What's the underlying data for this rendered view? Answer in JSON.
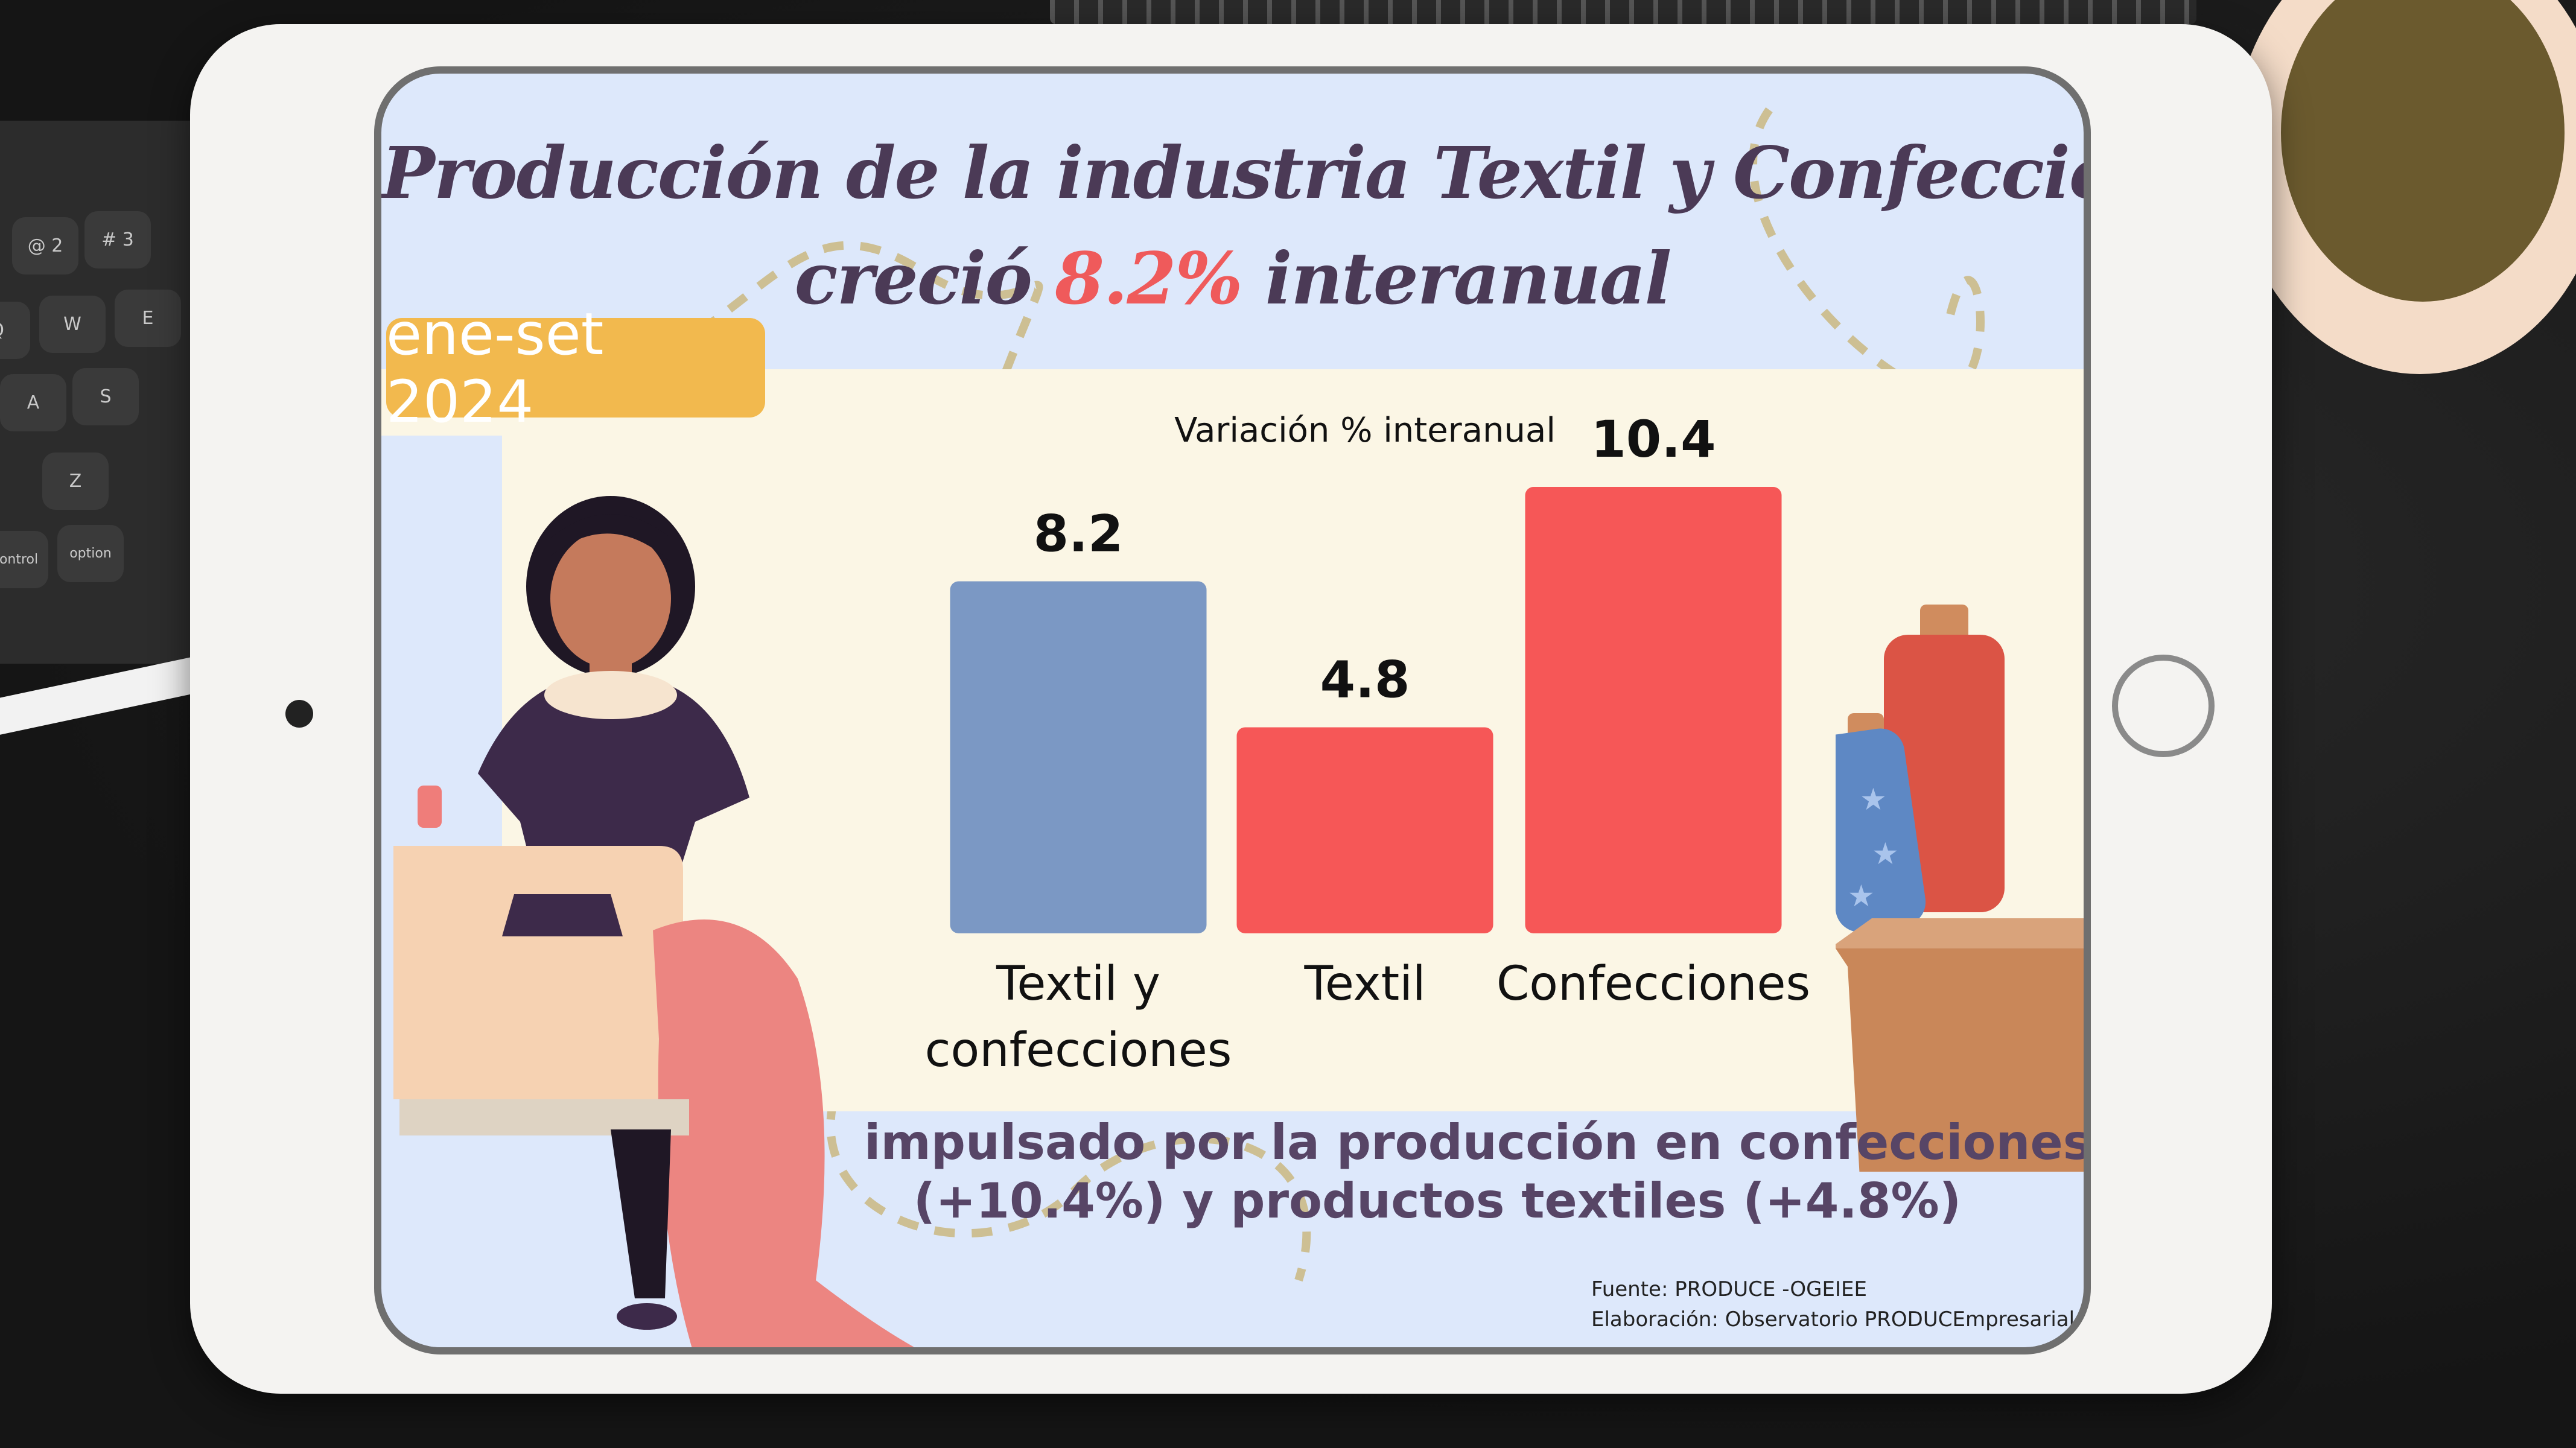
{
  "title": {
    "line1": "Producción de la industria Textil y Confecciones",
    "line2_before": "creció ",
    "line2_highlight": "8.2%",
    "line2_after": " interanual"
  },
  "period_badge": "ene-set 2024",
  "chart_data": {
    "type": "bar",
    "title": "Variación % interanual",
    "categories": [
      "Textil y confecciones",
      "Textil",
      "Confecciones"
    ],
    "category_lines": [
      [
        "Textil y",
        "confecciones"
      ],
      [
        "Textil"
      ],
      [
        "Confecciones"
      ]
    ],
    "values": [
      8.2,
      4.8,
      10.4
    ],
    "value_labels": [
      "8.2",
      "4.8",
      "10.4"
    ],
    "colors": [
      "#7b98c4",
      "#f65757",
      "#f65757"
    ],
    "ylim": [
      0,
      10.4
    ],
    "grid": false,
    "legend": "none"
  },
  "subtitle": {
    "line1": "impulsado por la producción en confecciones",
    "line2": "(+10.4%) y productos textiles (+4.8%)"
  },
  "source": {
    "line1": "Fuente: PRODUCE -OGEIEE",
    "line2": "Elaboración: Observatorio PRODUCEmpresarial"
  },
  "keyboard_keys": [
    "@ 2",
    "# 3",
    "Q",
    "W",
    "E",
    "A",
    "S",
    "Z",
    "control",
    "option"
  ],
  "colors": {
    "screen_background": "#dde8fb",
    "chart_panel": "#fbf6e5",
    "title_text": "#4b3a56",
    "highlight": "#ef5a5b",
    "badge": "#f2b94e"
  }
}
